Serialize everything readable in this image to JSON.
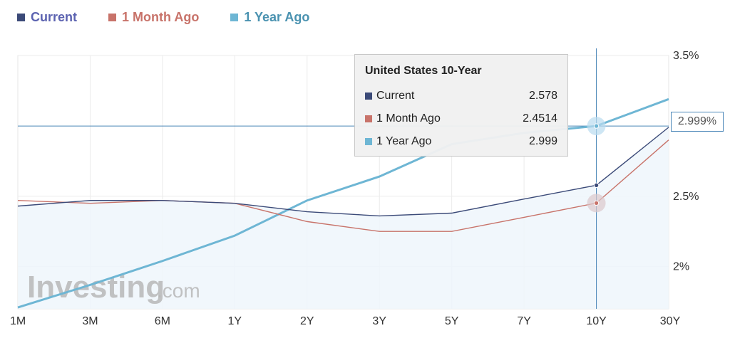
{
  "legend": {
    "current": {
      "label": "Current",
      "color": "#3b4a78"
    },
    "month_ago": {
      "label": "1 Month Ago",
      "color": "#c8736a"
    },
    "year_ago": {
      "label": "1 Year Ago",
      "color": "#6eb6d4"
    }
  },
  "tooltip": {
    "title": "United States 10-Year",
    "rows": [
      {
        "label": "Current",
        "value": "2.578"
      },
      {
        "label": "1 Month Ago",
        "value": "2.4514"
      },
      {
        "label": "1 Year Ago",
        "value": "2.999"
      }
    ]
  },
  "crosshair_value_label": "2.999%",
  "watermark": {
    "brand": "Investing",
    "suffix": ".com"
  },
  "chart_data": {
    "type": "line",
    "categories": [
      "1M",
      "3M",
      "6M",
      "1Y",
      "2Y",
      "3Y",
      "5Y",
      "7Y",
      "10Y",
      "30Y"
    ],
    "y_ticks": [
      "3.5%",
      "2.5%",
      "2%"
    ],
    "ylim": [
      1.7,
      3.5
    ],
    "grid": true,
    "highlight_category": "10Y",
    "series": [
      {
        "name": "Current",
        "color": "#3b4a78",
        "values": [
          2.43,
          2.47,
          2.47,
          2.45,
          2.39,
          2.36,
          2.38,
          2.48,
          2.578,
          2.99
        ]
      },
      {
        "name": "1 Month Ago",
        "color": "#c8736a",
        "values": [
          2.47,
          2.45,
          2.47,
          2.45,
          2.32,
          2.25,
          2.25,
          2.35,
          2.4514,
          2.9
        ]
      },
      {
        "name": "1 Year Ago",
        "color": "#6eb6d4",
        "values": [
          1.71,
          1.87,
          2.04,
          2.22,
          2.47,
          2.64,
          2.87,
          2.95,
          2.999,
          3.19
        ]
      }
    ]
  }
}
